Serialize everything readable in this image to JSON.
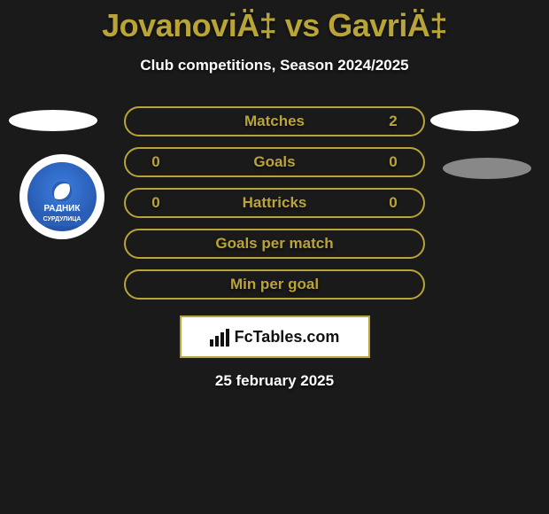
{
  "accent_color": "#b9a43a",
  "background_color": "#1a1a1a",
  "title": "JovanoviÄ‡ vs GavriÄ‡",
  "subtitle": "Club competitions, Season 2024/2025",
  "rows": [
    {
      "label": "Matches",
      "left": "",
      "right": "2"
    },
    {
      "label": "Goals",
      "left": "0",
      "right": "0"
    },
    {
      "label": "Hattricks",
      "left": "0",
      "right": "0"
    },
    {
      "label": "Goals per match",
      "left": "",
      "right": ""
    },
    {
      "label": "Min per goal",
      "left": "",
      "right": ""
    }
  ],
  "brand": "FcTables.com",
  "date": "25 february 2025",
  "club_badge": {
    "name": "РАДНИК",
    "ribbon": "СУРДУЛИЦА"
  }
}
